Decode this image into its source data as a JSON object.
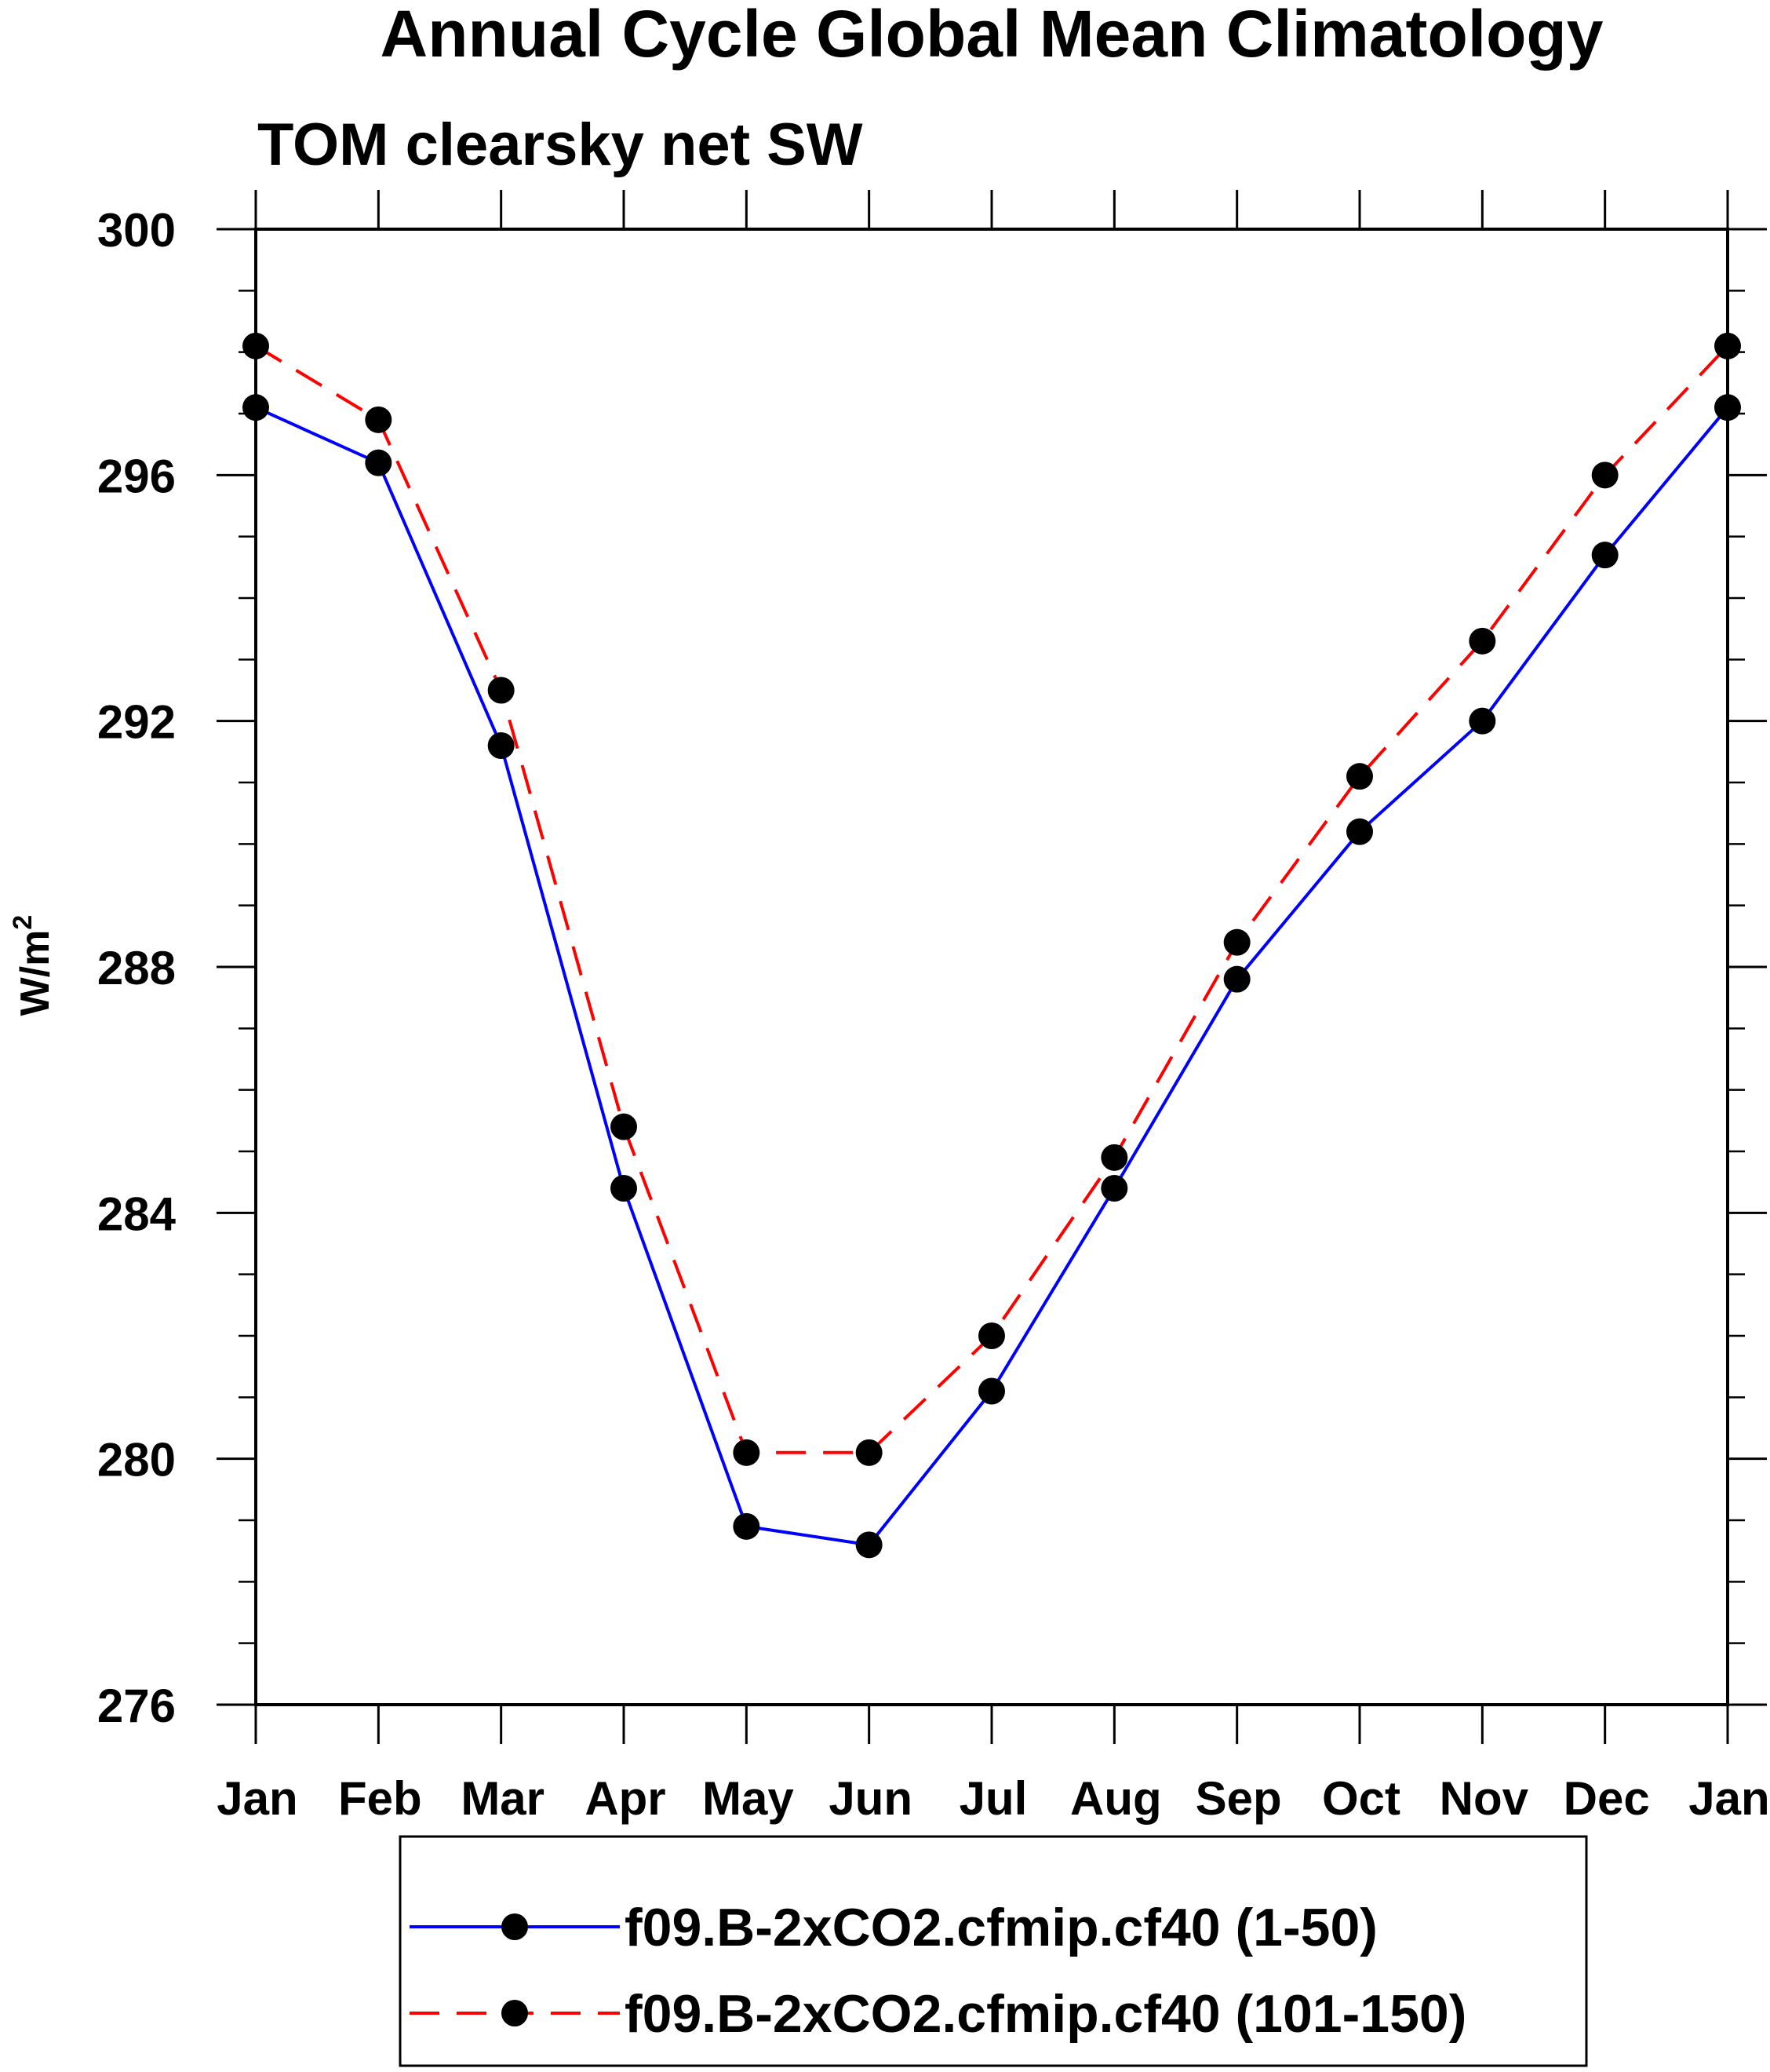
{
  "chart_data": {
    "type": "line",
    "title": "Annual Cycle Global Mean Climatology",
    "subtitle": "TOM clearsky net SW",
    "ylabel_base": "W/m",
    "ylabel_sup": "2",
    "xlabel": "",
    "categories": [
      "Jan",
      "Feb",
      "Mar",
      "Apr",
      "May",
      "Jun",
      "Jul",
      "Aug",
      "Sep",
      "Oct",
      "Nov",
      "Dec",
      "Jan"
    ],
    "ylim": [
      276,
      300
    ],
    "yticks": [
      276,
      280,
      284,
      288,
      292,
      296,
      300
    ],
    "ytick_labels": [
      "276",
      "280",
      "284",
      "288",
      "292",
      "296",
      "300"
    ],
    "legend_position": "bottom-center",
    "series": [
      {
        "name": "f09.B-2xCO2.cfmip.cf40 (1-50)",
        "color": "#0000ff",
        "dash": "solid",
        "marker": "filled-circle",
        "values": [
          297.1,
          296.2,
          291.6,
          284.4,
          278.9,
          278.6,
          281.1,
          284.4,
          287.8,
          290.2,
          292.0,
          294.7,
          297.1
        ]
      },
      {
        "name": "f09.B-2xCO2.cfmip.cf40 (101-150)",
        "color": "#ff0000",
        "dash": "dashed",
        "marker": "filled-circle",
        "values": [
          298.1,
          296.9,
          292.5,
          285.4,
          280.1,
          280.1,
          282.0,
          284.9,
          288.4,
          291.1,
          293.3,
          296.0,
          298.1
        ]
      }
    ]
  }
}
